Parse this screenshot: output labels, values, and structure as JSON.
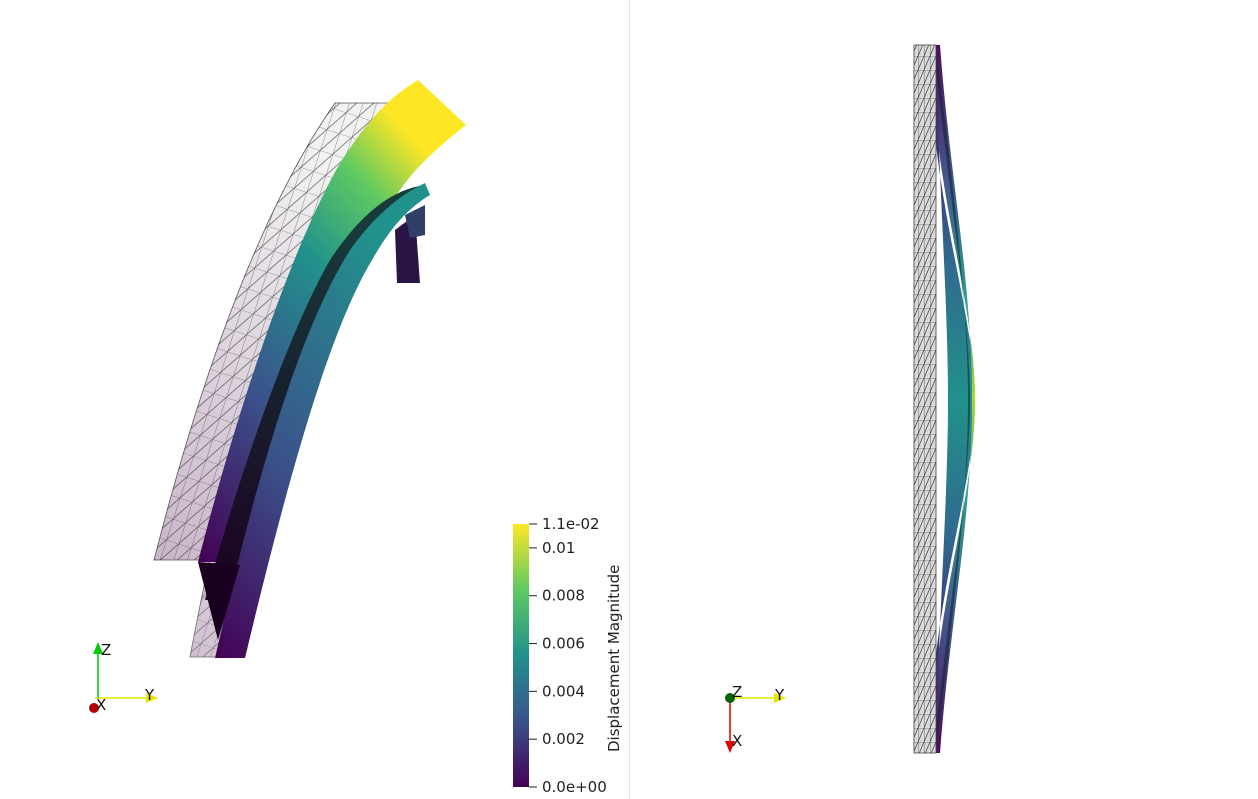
{
  "colors": {
    "background": "#ffffff",
    "viridis": [
      "#440154",
      "#3b528b",
      "#21918c",
      "#5ec962",
      "#fde725"
    ],
    "mesh_line": "#222222",
    "axis_x": "#e00000",
    "axis_y": "#e6e600",
    "axis_z": "#00cc00"
  },
  "colorbar": {
    "title": "Displacement Magnitude",
    "min_label": "0.0e+00",
    "max_label": "1.1e-02",
    "ticks": [
      {
        "value": 0.002,
        "label": "0.002"
      },
      {
        "value": 0.004,
        "label": "0.004"
      },
      {
        "value": 0.006,
        "label": "0.006"
      },
      {
        "value": 0.008,
        "label": "0.008"
      },
      {
        "value": 0.01,
        "label": "0.01"
      }
    ],
    "range": [
      0,
      0.011
    ]
  },
  "left_view": {
    "axes": {
      "x": "X",
      "y": "Y",
      "z": "Z"
    }
  },
  "right_view": {
    "axes": {
      "x": "X",
      "y": "Y",
      "z": "Z"
    }
  }
}
